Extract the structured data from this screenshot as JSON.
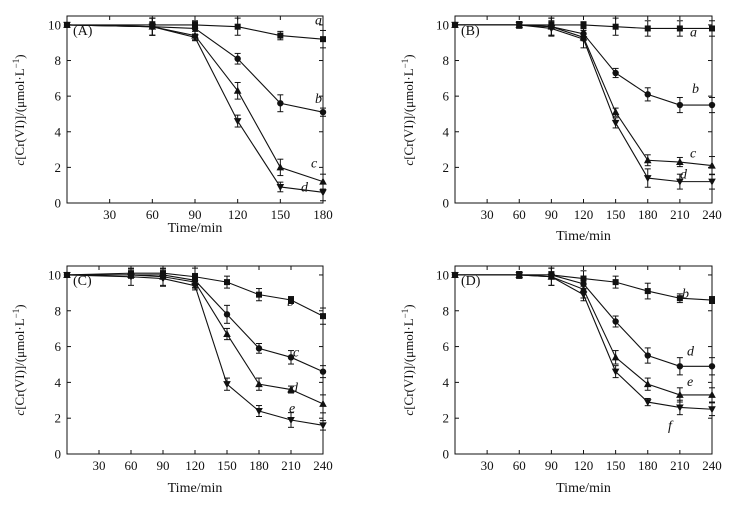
{
  "chart_data": [
    {
      "type": "line",
      "panel_label": "(A)",
      "xlabel": "Time/min",
      "ylabel": {
        "italic": "c",
        "main": "[Cr(VI)]/(μmol·L",
        "sup": "−1",
        "close": ")"
      },
      "xlim": [
        0,
        180
      ],
      "ylim": [
        0,
        10.5
      ],
      "xticks": [
        30,
        60,
        90,
        120,
        150,
        180
      ],
      "yticks": [
        0,
        2,
        4,
        6,
        8,
        10
      ],
      "series": [
        {
          "name": "a",
          "marker": "square",
          "x": [
            0,
            60,
            90,
            120,
            150,
            180
          ],
          "y": [
            10,
            10,
            10,
            9.9,
            9.4,
            9.2
          ]
        },
        {
          "name": "b",
          "marker": "circle",
          "x": [
            0,
            60,
            90,
            120,
            150,
            180
          ],
          "y": [
            10,
            9.9,
            9.8,
            8.1,
            5.6,
            5.1
          ]
        },
        {
          "name": "c",
          "marker": "triangle",
          "x": [
            0,
            60,
            90,
            120,
            150,
            180
          ],
          "y": [
            10,
            9.9,
            9.4,
            6.3,
            2.0,
            1.2
          ]
        },
        {
          "name": "d",
          "marker": "tri-down",
          "x": [
            0,
            60,
            90,
            120,
            150,
            180
          ],
          "y": [
            10,
            9.9,
            9.3,
            4.6,
            0.9,
            0.6
          ]
        }
      ]
    },
    {
      "type": "line",
      "panel_label": "(B)",
      "xlabel": "Time/min",
      "ylabel": {
        "italic": "c",
        "main": "[Cr(VI)]/(μmol·L",
        "sup": "−1",
        "close": ")"
      },
      "xlim": [
        0,
        240
      ],
      "ylim": [
        0,
        10.5
      ],
      "xticks": [
        30,
        60,
        90,
        120,
        150,
        180,
        210,
        240
      ],
      "yticks": [
        0,
        2,
        4,
        6,
        8,
        10
      ],
      "series": [
        {
          "name": "a",
          "marker": "square",
          "x": [
            0,
            60,
            90,
            120,
            150,
            180,
            210,
            240
          ],
          "y": [
            10,
            10,
            10,
            10,
            9.9,
            9.8,
            9.8,
            9.8
          ]
        },
        {
          "name": "b",
          "marker": "circle",
          "x": [
            0,
            60,
            90,
            120,
            150,
            180,
            210,
            240
          ],
          "y": [
            10,
            10,
            9.9,
            9.5,
            7.3,
            6.1,
            5.5,
            5.5
          ]
        },
        {
          "name": "c",
          "marker": "triangle",
          "x": [
            0,
            60,
            90,
            120,
            150,
            180,
            210,
            240
          ],
          "y": [
            10,
            10,
            9.9,
            9.3,
            5.1,
            2.4,
            2.3,
            2.1
          ]
        },
        {
          "name": "d",
          "marker": "tri-down",
          "x": [
            0,
            60,
            90,
            120,
            150,
            180,
            210,
            240
          ],
          "y": [
            10,
            10,
            9.8,
            9.2,
            4.5,
            1.4,
            1.2,
            1.2
          ]
        }
      ]
    },
    {
      "type": "line",
      "panel_label": "(C)",
      "xlabel": "Time/min",
      "ylabel": {
        "italic": "c",
        "main": "[Cr(VI)]/(μmol·L",
        "sup": "−1",
        "close": ")"
      },
      "xlim": [
        0,
        240
      ],
      "ylim": [
        0,
        10.5
      ],
      "xticks": [
        30,
        60,
        90,
        120,
        150,
        180,
        210,
        240
      ],
      "yticks": [
        0,
        2,
        4,
        6,
        8,
        10
      ],
      "series": [
        {
          "name": "b",
          "marker": "square",
          "x": [
            0,
            60,
            90,
            120,
            150,
            180,
            210,
            240
          ],
          "y": [
            10,
            10.1,
            10.1,
            9.9,
            9.6,
            8.9,
            8.6,
            7.7
          ]
        },
        {
          "name": "c",
          "marker": "circle",
          "x": [
            0,
            60,
            90,
            120,
            150,
            180,
            210,
            240
          ],
          "y": [
            10,
            10,
            10,
            9.7,
            7.8,
            5.9,
            5.4,
            4.6
          ]
        },
        {
          "name": "d",
          "marker": "triangle",
          "x": [
            0,
            60,
            90,
            120,
            150,
            180,
            210,
            240
          ],
          "y": [
            10,
            10,
            9.9,
            9.6,
            6.7,
            3.9,
            3.6,
            2.8
          ]
        },
        {
          "name": "e",
          "marker": "tri-down",
          "x": [
            0,
            60,
            90,
            120,
            150,
            180,
            210,
            240
          ],
          "y": [
            10,
            9.9,
            9.8,
            9.4,
            3.9,
            2.4,
            1.9,
            1.6
          ]
        }
      ]
    },
    {
      "type": "line",
      "panel_label": "(D)",
      "xlabel": "Time/min",
      "ylabel": {
        "italic": "c",
        "main": "[Cr(VI)]/(μmol·L",
        "sup": "−1",
        "close": ")"
      },
      "xlim": [
        0,
        240
      ],
      "ylim": [
        0,
        10.5
      ],
      "xticks": [
        30,
        60,
        90,
        120,
        150,
        180,
        210,
        240
      ],
      "yticks": [
        0,
        2,
        4,
        6,
        8,
        10
      ],
      "series": [
        {
          "name": "b",
          "marker": "square",
          "x": [
            0,
            60,
            90,
            120,
            150,
            180,
            210,
            240
          ],
          "y": [
            10,
            10,
            10,
            9.8,
            9.6,
            9.1,
            8.7,
            8.6
          ]
        },
        {
          "name": "d",
          "marker": "circle",
          "x": [
            0,
            60,
            90,
            120,
            150,
            180,
            210,
            240
          ],
          "y": [
            10,
            10,
            10,
            9.5,
            7.4,
            5.5,
            4.9,
            4.9
          ]
        },
        {
          "name": "e",
          "marker": "triangle",
          "x": [
            0,
            60,
            90,
            120,
            150,
            180,
            210,
            240
          ],
          "y": [
            10,
            10,
            9.9,
            9.2,
            5.4,
            3.9,
            3.3,
            3.3
          ]
        },
        {
          "name": "f",
          "marker": "tri-down",
          "x": [
            0,
            60,
            90,
            120,
            150,
            180,
            210,
            240
          ],
          "y": [
            10,
            10,
            9.9,
            8.9,
            4.6,
            2.9,
            2.6,
            2.5
          ]
        }
      ]
    }
  ]
}
